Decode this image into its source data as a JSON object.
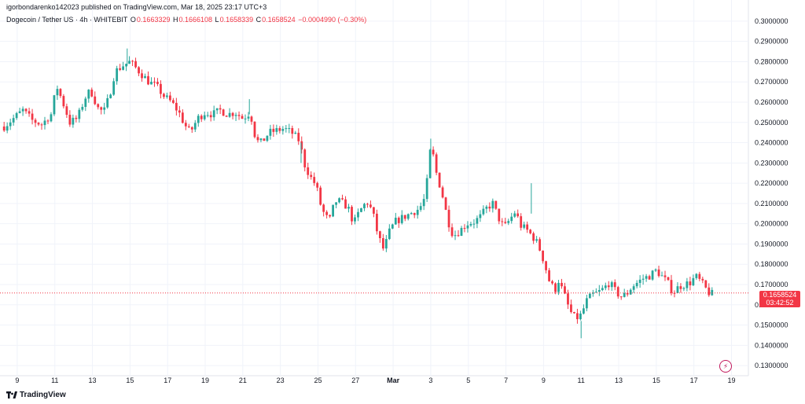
{
  "header": {
    "publisher": "igorbondarenko142023 published on TradingView.com, Mar 18, 2025 23:17 UTC+3",
    "symbol": "Dogecoin / Tether US · 4h · WHITEBIT",
    "open_label": "O",
    "open": "0.1663329",
    "high_label": "H",
    "high": "0.1666108",
    "low_label": "L",
    "low": "0.1658339",
    "close_label": "C",
    "close": "0.1658524",
    "change": "−0.0004990 (−0.30%)"
  },
  "price_tag": {
    "price": "0.1658524",
    "countdown": "03:42:52"
  },
  "brand": {
    "name": "TradingView"
  },
  "colors": {
    "up": "#26a69a",
    "down": "#f23645",
    "grid": "#f0f3fa",
    "text": "#131722",
    "axis_text": "#131722"
  },
  "chart_data": {
    "type": "candlestick",
    "title": "Dogecoin / Tether US · 4h · WHITEBIT",
    "interval": "4h",
    "ylim": [
      0.125,
      0.305
    ],
    "y_ticks": [
      "0.3000000",
      "0.2900000",
      "0.2800000",
      "0.2700000",
      "0.2600000",
      "0.2500000",
      "0.2400000",
      "0.2300000",
      "0.2200000",
      "0.2100000",
      "0.2000000",
      "0.1900000",
      "0.1800000",
      "0.1700000",
      "0.1600000",
      "0.1500000",
      "0.1400000",
      "0.1300000"
    ],
    "x_labels": [
      {
        "label": "9",
        "day": 9
      },
      {
        "label": "11",
        "day": 11
      },
      {
        "label": "13",
        "day": 13
      },
      {
        "label": "15",
        "day": 15
      },
      {
        "label": "17",
        "day": 17
      },
      {
        "label": "19",
        "day": 19
      },
      {
        "label": "21",
        "day": 21
      },
      {
        "label": "23",
        "day": 23
      },
      {
        "label": "25",
        "day": 25
      },
      {
        "label": "27",
        "day": 27
      },
      {
        "label": "Mar",
        "day": 29
      },
      {
        "label": "3",
        "day": 31
      },
      {
        "label": "5",
        "day": 33
      },
      {
        "label": "7",
        "day": 35
      },
      {
        "label": "9",
        "day": 37
      },
      {
        "label": "11",
        "day": 39
      },
      {
        "label": "13",
        "day": 41
      },
      {
        "label": "15",
        "day": 43
      },
      {
        "label": "17",
        "day": 45
      },
      {
        "label": "19",
        "day": 47
      }
    ],
    "day_range": [
      8.25,
      47.9
    ],
    "last_price": 0.1658524,
    "path_day_close": [
      [
        8.3,
        0.248
      ],
      [
        8.8,
        0.252
      ],
      [
        9.3,
        0.256
      ],
      [
        9.8,
        0.251
      ],
      [
        10.3,
        0.249
      ],
      [
        10.8,
        0.254
      ],
      [
        11.1,
        0.268
      ],
      [
        11.5,
        0.258
      ],
      [
        11.8,
        0.25
      ],
      [
        12.2,
        0.252
      ],
      [
        12.6,
        0.262
      ],
      [
        12.9,
        0.266
      ],
      [
        13.3,
        0.257
      ],
      [
        13.6,
        0.255
      ],
      [
        13.9,
        0.263
      ],
      [
        14.2,
        0.275
      ],
      [
        14.6,
        0.278
      ],
      [
        15.0,
        0.28
      ],
      [
        15.3,
        0.277
      ],
      [
        15.7,
        0.273
      ],
      [
        16.0,
        0.27
      ],
      [
        16.4,
        0.268
      ],
      [
        16.8,
        0.263
      ],
      [
        17.2,
        0.26
      ],
      [
        17.6,
        0.255
      ],
      [
        17.9,
        0.249
      ],
      [
        18.2,
        0.245
      ],
      [
        18.6,
        0.252
      ],
      [
        19.0,
        0.255
      ],
      [
        19.4,
        0.254
      ],
      [
        19.8,
        0.256
      ],
      [
        20.2,
        0.254
      ],
      [
        20.6,
        0.255
      ],
      [
        21.0,
        0.252
      ],
      [
        21.4,
        0.255
      ],
      [
        21.7,
        0.241
      ],
      [
        22.0,
        0.24
      ],
      [
        22.4,
        0.245
      ],
      [
        22.8,
        0.246
      ],
      [
        23.2,
        0.247
      ],
      [
        23.6,
        0.245
      ],
      [
        24.0,
        0.241
      ],
      [
        24.3,
        0.229
      ],
      [
        24.6,
        0.223
      ],
      [
        24.9,
        0.219
      ],
      [
        25.2,
        0.207
      ],
      [
        25.6,
        0.201
      ],
      [
        25.9,
        0.211
      ],
      [
        26.2,
        0.211
      ],
      [
        26.6,
        0.208
      ],
      [
        26.9,
        0.2
      ],
      [
        27.2,
        0.206
      ],
      [
        27.6,
        0.211
      ],
      [
        27.9,
        0.206
      ],
      [
        28.2,
        0.194
      ],
      [
        28.5,
        0.187
      ],
      [
        28.8,
        0.196
      ],
      [
        29.1,
        0.201
      ],
      [
        29.5,
        0.203
      ],
      [
        29.9,
        0.205
      ],
      [
        30.3,
        0.207
      ],
      [
        30.6,
        0.21
      ],
      [
        30.9,
        0.226
      ],
      [
        31.0,
        0.24
      ],
      [
        31.3,
        0.225
      ],
      [
        31.6,
        0.215
      ],
      [
        31.9,
        0.202
      ],
      [
        32.2,
        0.194
      ],
      [
        32.6,
        0.197
      ],
      [
        32.9,
        0.2
      ],
      [
        33.3,
        0.201
      ],
      [
        33.6,
        0.203
      ],
      [
        34.0,
        0.208
      ],
      [
        34.3,
        0.21
      ],
      [
        34.6,
        0.203
      ],
      [
        34.9,
        0.198
      ],
      [
        35.2,
        0.202
      ],
      [
        35.5,
        0.206
      ],
      [
        35.8,
        0.199
      ],
      [
        36.1,
        0.197
      ],
      [
        36.4,
        0.194
      ],
      [
        36.7,
        0.19
      ],
      [
        37.0,
        0.182
      ],
      [
        37.3,
        0.172
      ],
      [
        37.6,
        0.167
      ],
      [
        37.8,
        0.172
      ],
      [
        38.1,
        0.165
      ],
      [
        38.4,
        0.157
      ],
      [
        38.7,
        0.153
      ],
      [
        39.0,
        0.155
      ],
      [
        39.3,
        0.162
      ],
      [
        39.6,
        0.165
      ],
      [
        39.9,
        0.166
      ],
      [
        40.2,
        0.168
      ],
      [
        40.5,
        0.171
      ],
      [
        40.8,
        0.167
      ],
      [
        41.1,
        0.164
      ],
      [
        41.4,
        0.165
      ],
      [
        41.7,
        0.169
      ],
      [
        42.0,
        0.171
      ],
      [
        42.3,
        0.173
      ],
      [
        42.6,
        0.174
      ],
      [
        43.0,
        0.177
      ],
      [
        43.3,
        0.174
      ],
      [
        43.6,
        0.171
      ],
      [
        43.9,
        0.166
      ],
      [
        44.2,
        0.169
      ],
      [
        44.5,
        0.17
      ],
      [
        44.8,
        0.171
      ],
      [
        45.1,
        0.174
      ],
      [
        45.4,
        0.171
      ],
      [
        45.7,
        0.167
      ],
      [
        45.9,
        0.165
      ],
      [
        46.1,
        0.166
      ]
    ]
  }
}
